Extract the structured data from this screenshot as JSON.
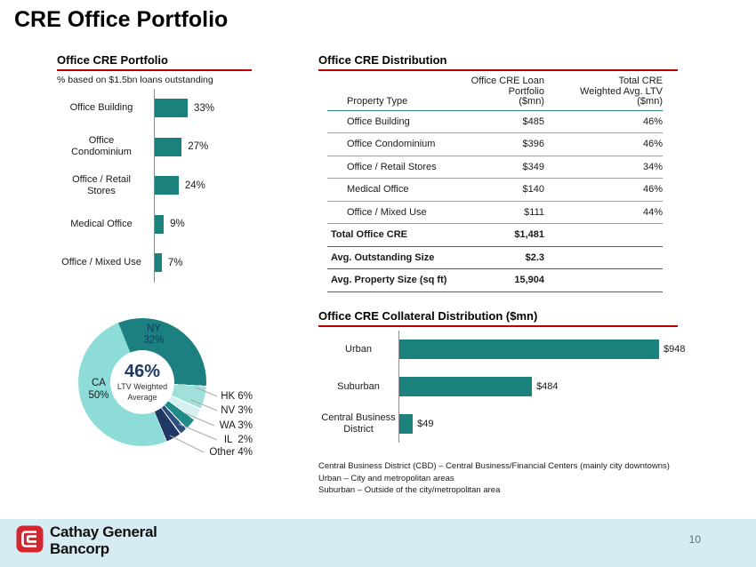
{
  "slide": {
    "title": "CRE Office Portfolio",
    "page_number": "10"
  },
  "portfolio_chart": {
    "title": "Office CRE Portfolio",
    "subtitle": "% based on $1.5bn loans outstanding",
    "bar_color": "#1a817d",
    "bars": [
      {
        "label_lines": [
          "Office Building"
        ],
        "value": 33,
        "display": "33%"
      },
      {
        "label_lines": [
          "Office",
          "Condominium"
        ],
        "value": 27,
        "display": "27%"
      },
      {
        "label_lines": [
          "Office / Retail",
          "Stores"
        ],
        "value": 24,
        "display": "24%"
      },
      {
        "label_lines": [
          "Medical Office"
        ],
        "value": 9,
        "display": "9%"
      },
      {
        "label_lines": [
          "Office / Mixed Use"
        ],
        "value": 7,
        "display": "7%"
      }
    ]
  },
  "donut": {
    "center_value": "46%",
    "center_sub": [
      "LTV Weighted",
      "Average"
    ],
    "ny_label": [
      "NY",
      "32%"
    ],
    "ca_label": [
      "CA",
      "50%"
    ],
    "callouts": [
      "HK 6%",
      "NV 3%",
      "WA 3%",
      "IL  2%",
      "Other 4%"
    ],
    "start_angle_deg": -22,
    "slices": [
      {
        "name": "NY",
        "value": 32,
        "color": "#1b807f",
        "gap": false
      },
      {
        "name": "HK",
        "value": 6,
        "color": "#9fe0db",
        "gap": true
      },
      {
        "name": "NV",
        "value": 3,
        "color": "#d5f0ee",
        "gap": true
      },
      {
        "name": "WA",
        "value": 3,
        "color": "#1f8c87",
        "gap": true
      },
      {
        "name": "IL",
        "value": 2,
        "color": "#2d4f80",
        "gap": true
      },
      {
        "name": "Other",
        "value": 4,
        "color": "#1f3864",
        "gap": true
      },
      {
        "name": "CA",
        "value": 50,
        "color": "#8edcd7",
        "gap": false
      }
    ]
  },
  "distribution_table": {
    "title": "Office CRE Distribution",
    "columns": [
      [
        "Property Type"
      ],
      [
        "Office CRE Loan",
        "Portfolio",
        "($mn)"
      ],
      [
        "Total CRE",
        "Weighted Avg. LTV",
        "($mn)"
      ]
    ],
    "rows": [
      [
        "Office Building",
        "$485",
        "46%"
      ],
      [
        "Office Condominium",
        "$396",
        "46%"
      ],
      [
        "Office / Retail Stores",
        "$349",
        "34%"
      ],
      [
        "Medical Office",
        "$140",
        "46%"
      ],
      [
        "Office / Mixed Use",
        "$111",
        "44%"
      ]
    ],
    "summary_rows": [
      [
        "Total Office CRE",
        "$1,481",
        ""
      ],
      [
        "Avg. Outstanding Size",
        "$2.3",
        ""
      ],
      [
        "Avg. Property Size (sq ft)",
        "15,904",
        ""
      ]
    ]
  },
  "collateral_chart": {
    "title": "Office CRE Collateral Distribution ($mn)",
    "bar_color": "#1a817d",
    "bars": [
      {
        "label_lines": [
          "Urban"
        ],
        "value": 948,
        "display": "$948"
      },
      {
        "label_lines": [
          "Suburban"
        ],
        "value": 484,
        "display": "$484"
      },
      {
        "label_lines": [
          "Central Business",
          "District"
        ],
        "value": 49,
        "display": "$49"
      }
    ],
    "footnotes": [
      "Central Business District (CBD) – Central Business/Financial Centers (mainly city downtowns)",
      "Urban – City and metropolitan areas",
      "Suburban – Outside of the city/metropolitan area"
    ]
  },
  "footer": {
    "brand_lines": [
      "Cathay General",
      "Bancorp"
    ],
    "logo_color": "#d4262e",
    "page_number": "10"
  },
  "chart_data": [
    {
      "type": "bar",
      "orientation": "horizontal",
      "title": "Office CRE Portfolio",
      "subtitle": "% based on $1.5bn loans outstanding",
      "categories": [
        "Office Building",
        "Office Condominium",
        "Office / Retail Stores",
        "Medical Office",
        "Office / Mixed Use"
      ],
      "values": [
        33,
        27,
        24,
        9,
        7
      ],
      "unit": "%"
    },
    {
      "type": "pie",
      "title": "",
      "labels": [
        "NY",
        "CA",
        "HK",
        "NV",
        "WA",
        "IL",
        "Other"
      ],
      "values": [
        32,
        50,
        6,
        3,
        3,
        2,
        4
      ],
      "unit": "%",
      "center_value": "46%",
      "center_label": "LTV Weighted Average"
    },
    {
      "type": "table",
      "title": "Office CRE Distribution",
      "columns": [
        "Property Type",
        "Office CRE Loan Portfolio ($mn)",
        "Total CRE Weighted Avg. LTV ($mn)"
      ],
      "rows": [
        [
          "Office Building",
          "$485",
          "46%"
        ],
        [
          "Office Condominium",
          "$396",
          "46%"
        ],
        [
          "Office / Retail Stores",
          "$349",
          "34%"
        ],
        [
          "Medical Office",
          "$140",
          "46%"
        ],
        [
          "Office / Mixed Use",
          "$111",
          "44%"
        ],
        [
          "Total Office CRE",
          "$1,481",
          ""
        ],
        [
          "Avg. Outstanding Size",
          "$2.3",
          ""
        ],
        [
          "Avg. Property Size (sq ft)",
          "15,904",
          ""
        ]
      ]
    },
    {
      "type": "bar",
      "orientation": "horizontal",
      "title": "Office CRE Collateral Distribution ($mn)",
      "categories": [
        "Urban",
        "Suburban",
        "Central Business District"
      ],
      "values": [
        948,
        484,
        49
      ],
      "unit": "$mn"
    }
  ]
}
